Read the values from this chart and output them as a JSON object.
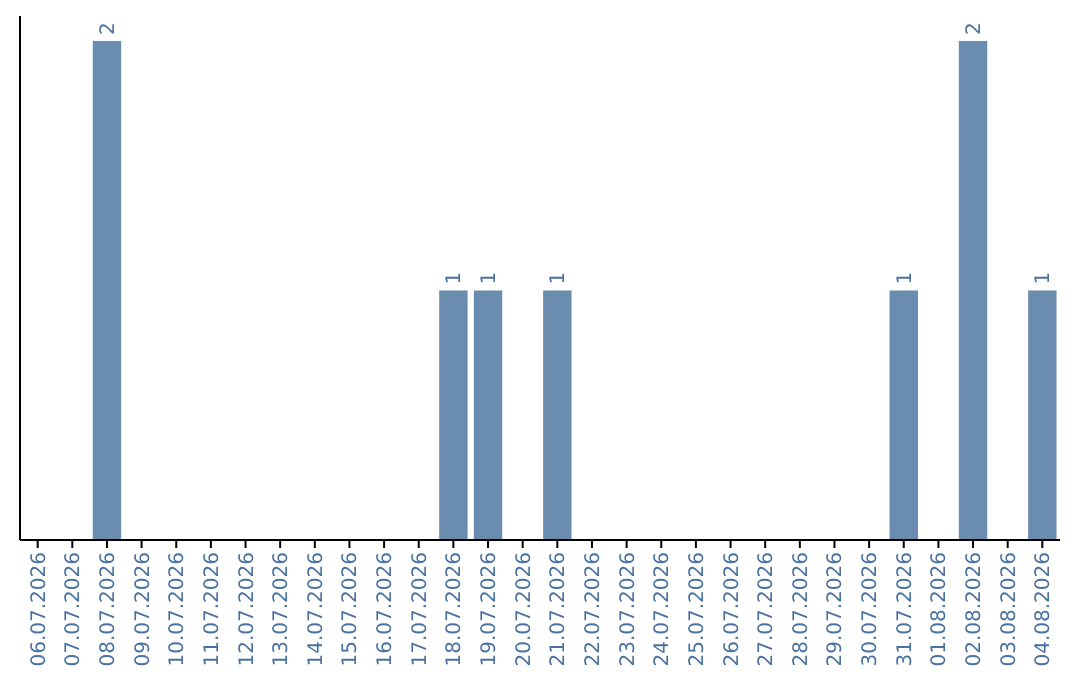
{
  "chart_data": {
    "type": "bar",
    "categories": [
      "06.07.2026",
      "07.07.2026",
      "08.07.2026",
      "09.07.2026",
      "10.07.2026",
      "11.07.2026",
      "12.07.2026",
      "13.07.2026",
      "14.07.2026",
      "15.07.2026",
      "16.07.2026",
      "17.07.2026",
      "18.07.2026",
      "19.07.2026",
      "20.07.2026",
      "21.07.2026",
      "22.07.2026",
      "23.07.2026",
      "24.07.2026",
      "25.07.2026",
      "26.07.2026",
      "27.07.2026",
      "28.07.2026",
      "29.07.2026",
      "30.07.2026",
      "31.07.2026",
      "01.08.2026",
      "02.08.2026",
      "03.08.2026",
      "04.08.2026"
    ],
    "values": [
      0,
      0,
      2,
      0,
      0,
      0,
      0,
      0,
      0,
      0,
      0,
      0,
      1,
      1,
      0,
      1,
      0,
      0,
      0,
      0,
      0,
      0,
      0,
      0,
      0,
      1,
      0,
      2,
      0,
      1
    ],
    "value_labels": [
      null,
      null,
      "2",
      null,
      null,
      null,
      null,
      null,
      null,
      null,
      null,
      null,
      "1",
      "1",
      null,
      "1",
      null,
      null,
      null,
      null,
      null,
      null,
      null,
      null,
      null,
      "1",
      null,
      "2",
      null,
      "1"
    ],
    "color": "#6a8caf"
  }
}
